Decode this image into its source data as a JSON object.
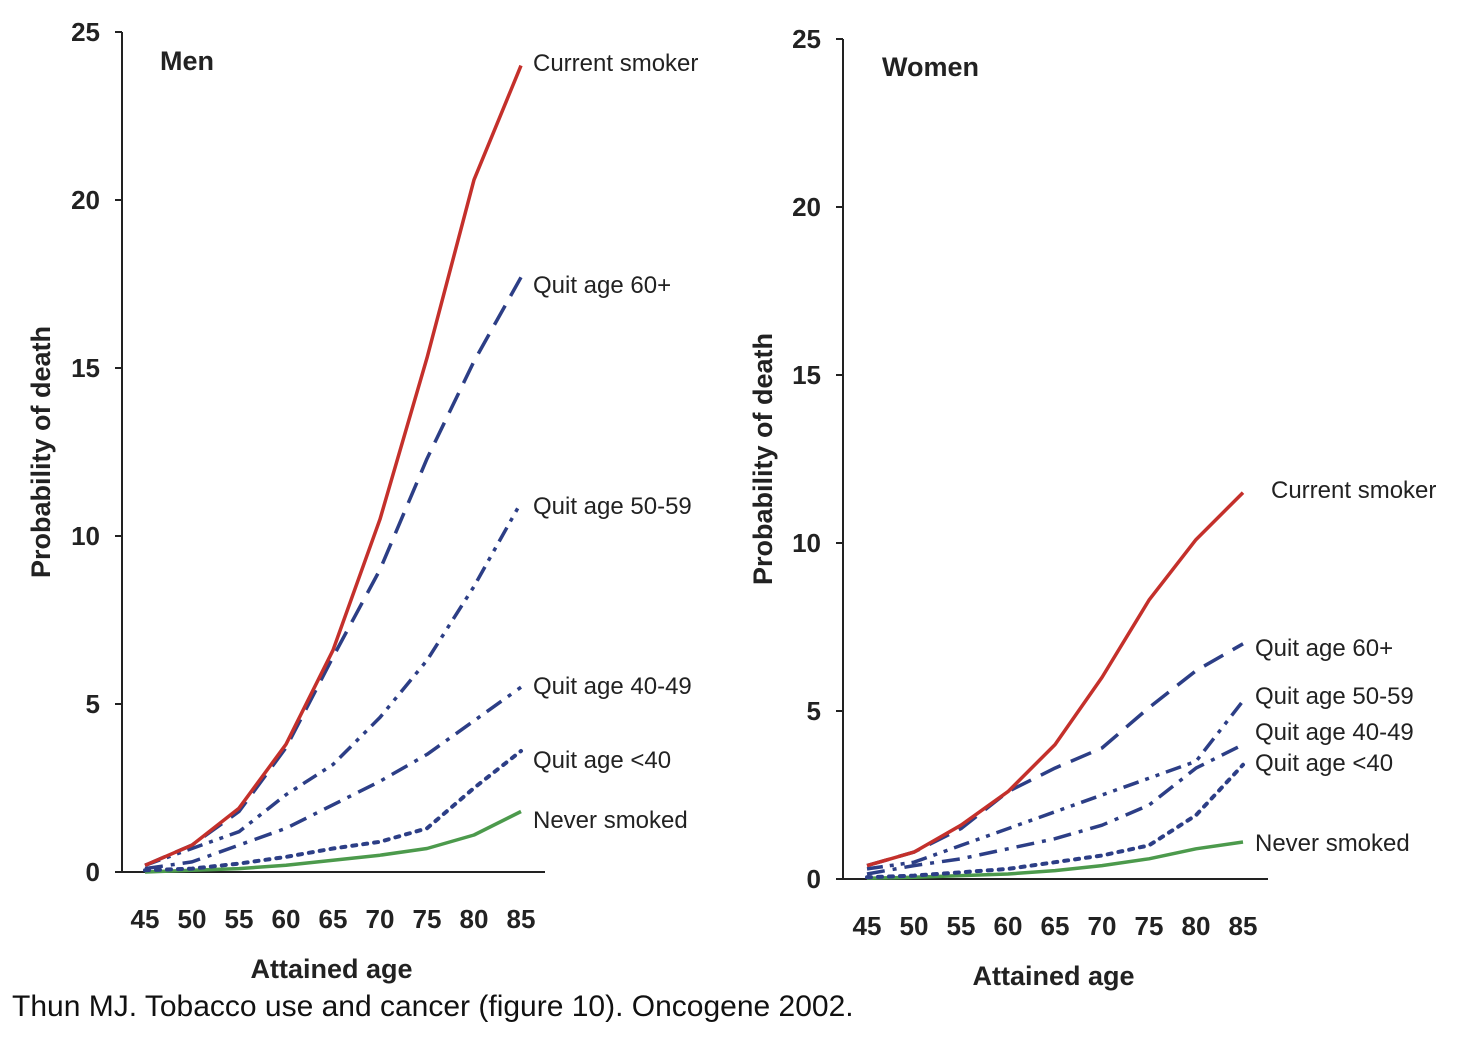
{
  "caption": "Thun MJ. Tobacco use and cancer (figure 10). Oncogene 2002.",
  "colors": {
    "current": "#c4302b",
    "quit": "#2c3e86",
    "never": "#4c9a4c",
    "axis": "#222222"
  },
  "chart_data": [
    {
      "type": "line",
      "panel_title": "Men",
      "xlabel": "Attained age",
      "ylabel": "Probability of death",
      "x": [
        45,
        50,
        55,
        60,
        65,
        70,
        75,
        80,
        85
      ],
      "x_tick_labels": [
        "45",
        "50",
        "55",
        "60",
        "65",
        "70",
        "75",
        "80",
        "85"
      ],
      "ylim": [
        0,
        25
      ],
      "y_ticks": [
        0,
        5,
        10,
        15,
        20,
        25
      ],
      "grid": false,
      "series": [
        {
          "name": "Current smoker",
          "style": "solid",
          "color": "current",
          "values": [
            0.2,
            0.8,
            1.9,
            3.8,
            6.6,
            10.5,
            15.3,
            20.6,
            24.0
          ]
        },
        {
          "name": "Quit age 60+",
          "style": "dash",
          "color": "quit",
          "values": [
            0.2,
            0.8,
            1.8,
            3.7,
            6.4,
            9.0,
            12.3,
            15.2,
            17.7
          ]
        },
        {
          "name": "Quit age 50-59",
          "style": "dashdotdot",
          "color": "quit",
          "values": [
            0.2,
            0.7,
            1.2,
            2.3,
            3.2,
            4.6,
            6.3,
            8.5,
            11.0
          ]
        },
        {
          "name": "Quit age 40-49",
          "style": "dashdot",
          "color": "quit",
          "values": [
            0.1,
            0.3,
            0.8,
            1.3,
            2.0,
            2.7,
            3.5,
            4.5,
            5.5
          ]
        },
        {
          "name": "Quit age <40",
          "style": "dot",
          "color": "quit",
          "values": [
            0.05,
            0.1,
            0.25,
            0.45,
            0.7,
            0.9,
            1.3,
            2.5,
            3.6
          ]
        },
        {
          "name": "Never smoked",
          "style": "solid",
          "color": "never",
          "values": [
            0.0,
            0.05,
            0.1,
            0.2,
            0.35,
            0.5,
            0.7,
            1.1,
            1.8
          ]
        }
      ]
    },
    {
      "type": "line",
      "panel_title": "Women",
      "xlabel": "Attained age",
      "ylabel": "Probability of death",
      "x": [
        45,
        50,
        55,
        60,
        65,
        70,
        75,
        80,
        85
      ],
      "x_tick_labels": [
        "45",
        "50",
        "55",
        "60",
        "65",
        "70",
        "75",
        "80",
        "85"
      ],
      "ylim": [
        0,
        25
      ],
      "y_ticks": [
        0,
        5,
        10,
        15,
        20,
        25
      ],
      "grid": false,
      "series": [
        {
          "name": "Current smoker",
          "style": "solid",
          "color": "current",
          "values": [
            0.4,
            0.8,
            1.6,
            2.6,
            4.0,
            6.0,
            8.3,
            10.1,
            11.5
          ]
        },
        {
          "name": "Quit age 60+",
          "style": "dash",
          "color": "quit",
          "values": [
            0.4,
            0.8,
            1.5,
            2.6,
            3.3,
            3.9,
            5.1,
            6.2,
            7.0
          ]
        },
        {
          "name": "Quit age 50-59",
          "style": "dashdotdot",
          "color": "quit",
          "values": [
            0.3,
            0.5,
            1.0,
            1.5,
            2.0,
            2.5,
            3.0,
            3.5,
            5.3
          ]
        },
        {
          "name": "Quit age 40-49",
          "style": "dashdot",
          "color": "quit",
          "values": [
            0.15,
            0.4,
            0.6,
            0.9,
            1.2,
            1.6,
            2.2,
            3.3,
            4.0
          ]
        },
        {
          "name": "Quit age <40",
          "style": "dot",
          "color": "quit",
          "values": [
            0.05,
            0.1,
            0.2,
            0.3,
            0.5,
            0.7,
            1.0,
            1.9,
            3.4
          ]
        },
        {
          "name": "Never smoked",
          "style": "solid",
          "color": "never",
          "values": [
            0.02,
            0.05,
            0.1,
            0.15,
            0.25,
            0.4,
            0.6,
            0.9,
            1.1
          ]
        }
      ]
    }
  ]
}
